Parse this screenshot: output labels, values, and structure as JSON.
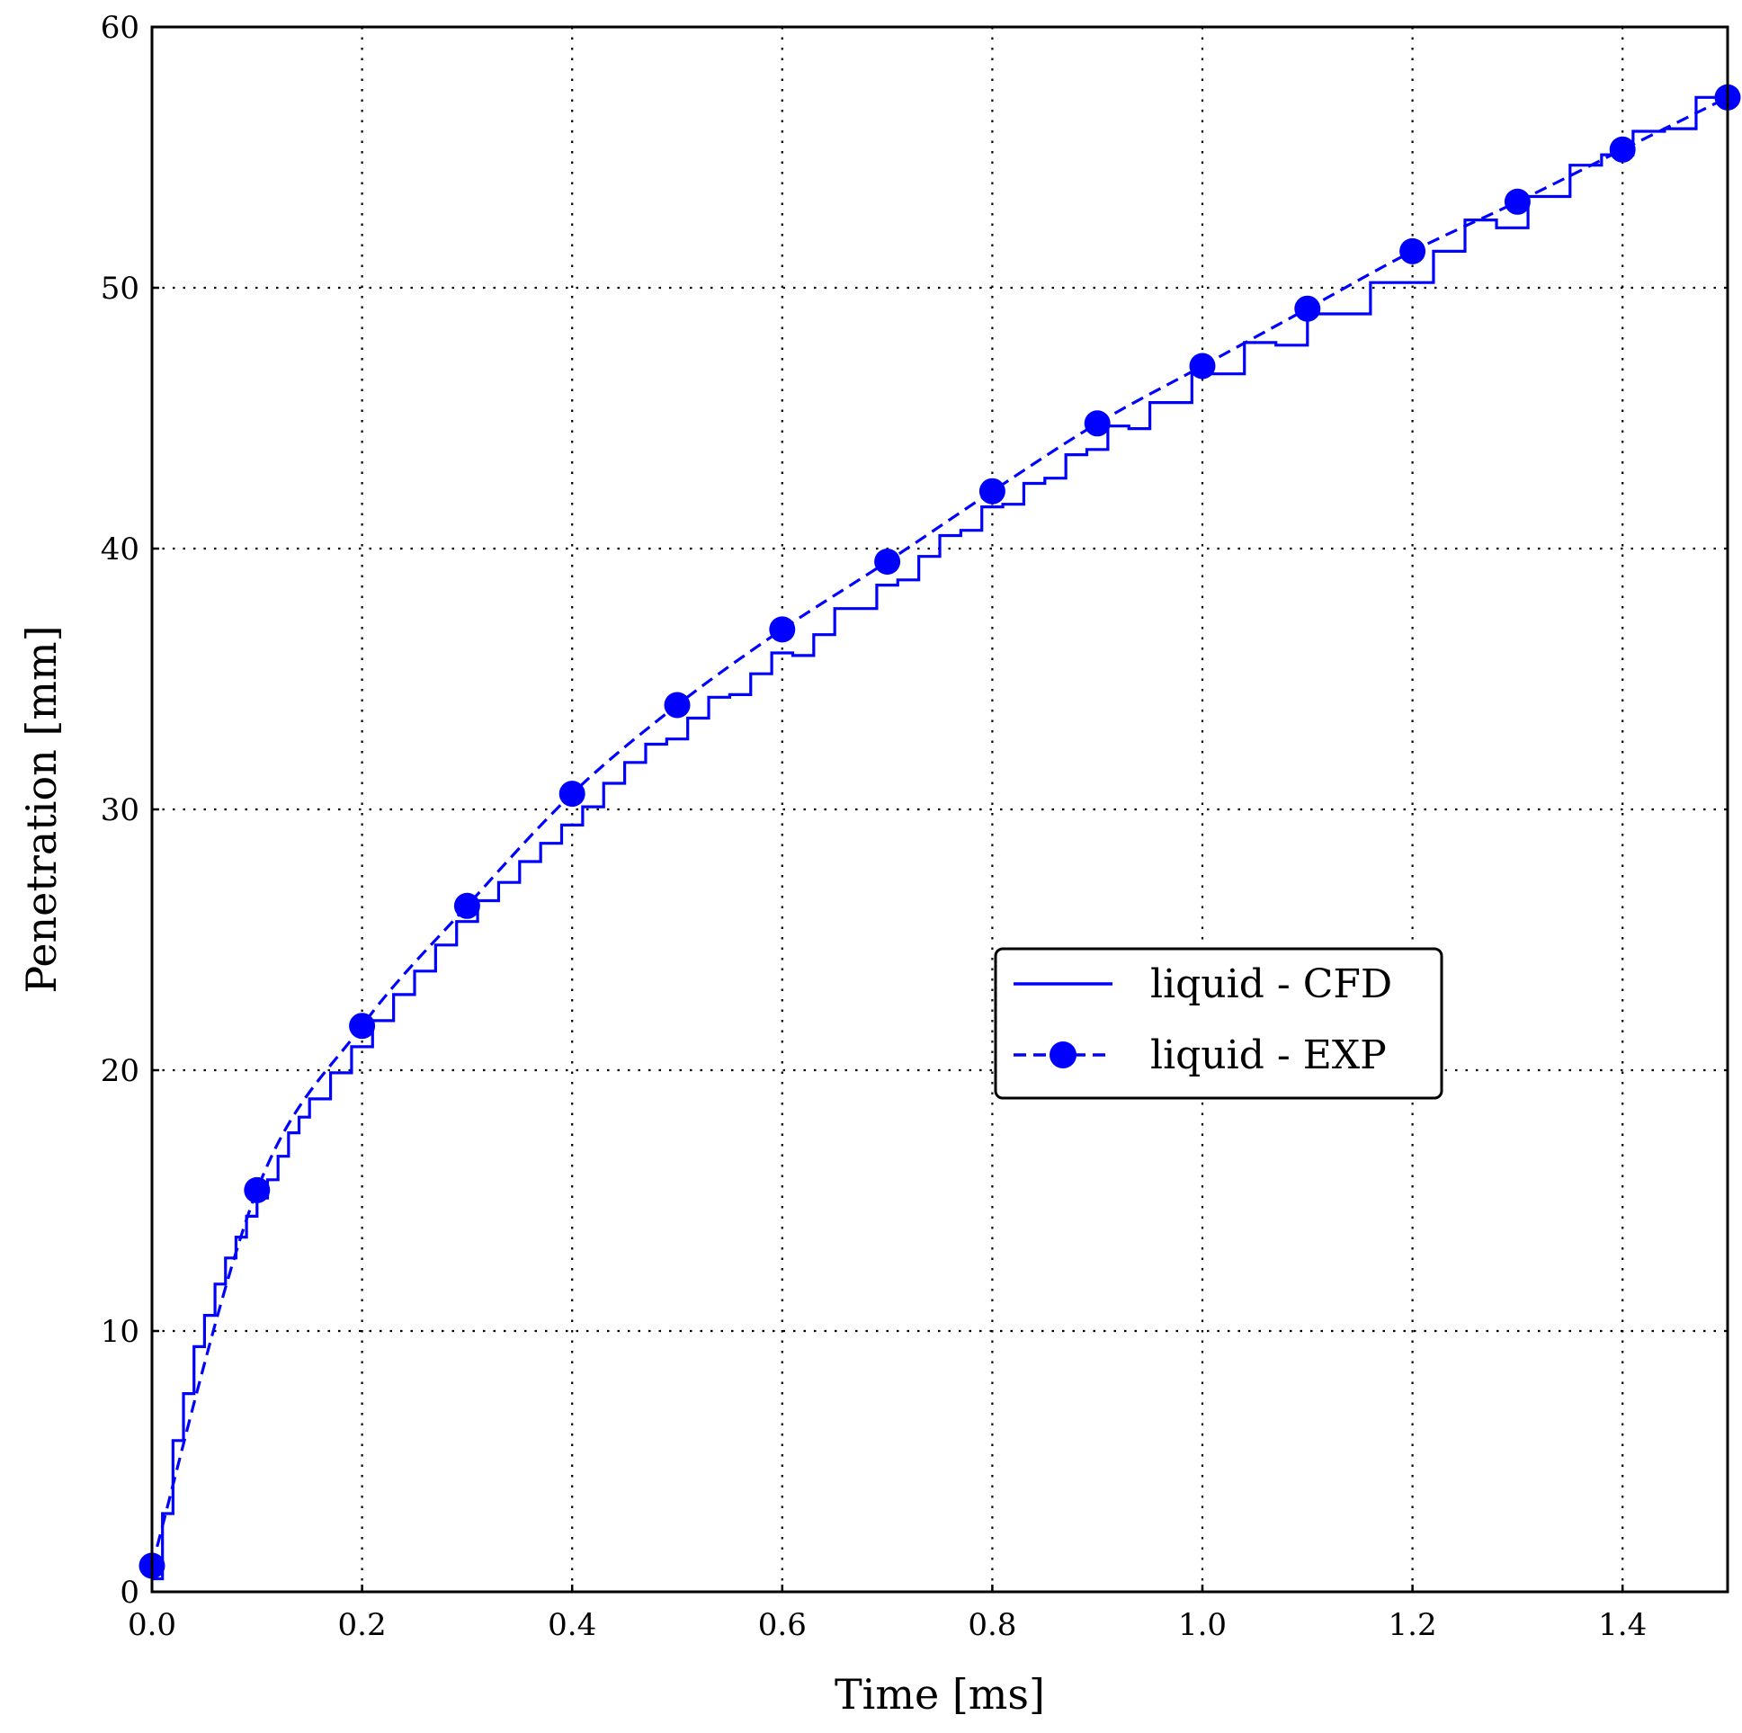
{
  "chart_data": {
    "type": "line",
    "title": "",
    "xlabel": "Time [ms]",
    "ylabel": "Penetration [mm]",
    "xlim": [
      0.0,
      1.5
    ],
    "ylim": [
      0,
      60
    ],
    "xticks": [
      "0.0",
      "0.2",
      "0.4",
      "0.6",
      "0.8",
      "1.0",
      "1.2",
      "1.4"
    ],
    "yticks": [
      "0",
      "10",
      "20",
      "30",
      "40",
      "50",
      "60"
    ],
    "grid": true,
    "grid_style": "dotted",
    "legend_position": "center-right",
    "color": "#0000ff",
    "series": [
      {
        "name": "liquid - CFD",
        "style": "solid-steps",
        "x": [
          0.0,
          0.01,
          0.02,
          0.03,
          0.04,
          0.05,
          0.06,
          0.07,
          0.08,
          0.09,
          0.1,
          0.11,
          0.12,
          0.13,
          0.14,
          0.15,
          0.17,
          0.19,
          0.21,
          0.23,
          0.25,
          0.27,
          0.29,
          0.31,
          0.33,
          0.35,
          0.37,
          0.39,
          0.41,
          0.43,
          0.45,
          0.47,
          0.49,
          0.51,
          0.53,
          0.55,
          0.57,
          0.59,
          0.61,
          0.63,
          0.65,
          0.67,
          0.69,
          0.71,
          0.73,
          0.75,
          0.77,
          0.79,
          0.81,
          0.83,
          0.85,
          0.87,
          0.89,
          0.91,
          0.93,
          0.95,
          0.97,
          0.99,
          1.01,
          1.04,
          1.07,
          1.1,
          1.13,
          1.16,
          1.19,
          1.22,
          1.25,
          1.28,
          1.31,
          1.35,
          1.38,
          1.41,
          1.44,
          1.47,
          1.5
        ],
        "y": [
          0.5,
          3.0,
          5.8,
          7.6,
          9.4,
          10.6,
          11.8,
          12.8,
          13.6,
          14.4,
          15.1,
          15.8,
          16.7,
          17.6,
          18.2,
          18.9,
          19.9,
          20.9,
          21.9,
          22.9,
          23.8,
          24.8,
          25.7,
          26.5,
          27.2,
          28.0,
          28.7,
          29.4,
          30.1,
          31.0,
          31.8,
          32.5,
          32.7,
          33.5,
          34.3,
          34.4,
          35.2,
          36.0,
          35.9,
          36.7,
          37.7,
          37.7,
          38.6,
          38.8,
          39.7,
          40.5,
          40.7,
          41.6,
          41.7,
          42.5,
          42.7,
          43.6,
          43.8,
          44.7,
          44.6,
          45.6,
          45.6,
          46.7,
          46.7,
          47.9,
          47.8,
          49.0,
          49.0,
          50.2,
          50.2,
          51.4,
          52.6,
          52.3,
          53.5,
          54.7,
          55.1,
          56.0,
          56.1,
          57.3,
          57.3
        ]
      },
      {
        "name": "liquid - EXP",
        "style": "dashed-markers",
        "x": [
          0.0,
          0.1,
          0.2,
          0.3,
          0.4,
          0.5,
          0.6,
          0.7,
          0.8,
          0.9,
          1.0,
          1.1,
          1.2,
          1.3,
          1.4,
          1.5
        ],
        "y": [
          1.0,
          15.4,
          21.7,
          26.3,
          30.6,
          34.0,
          36.9,
          39.5,
          42.2,
          44.8,
          47.0,
          49.2,
          51.4,
          53.3,
          55.3,
          57.3
        ]
      }
    ]
  }
}
